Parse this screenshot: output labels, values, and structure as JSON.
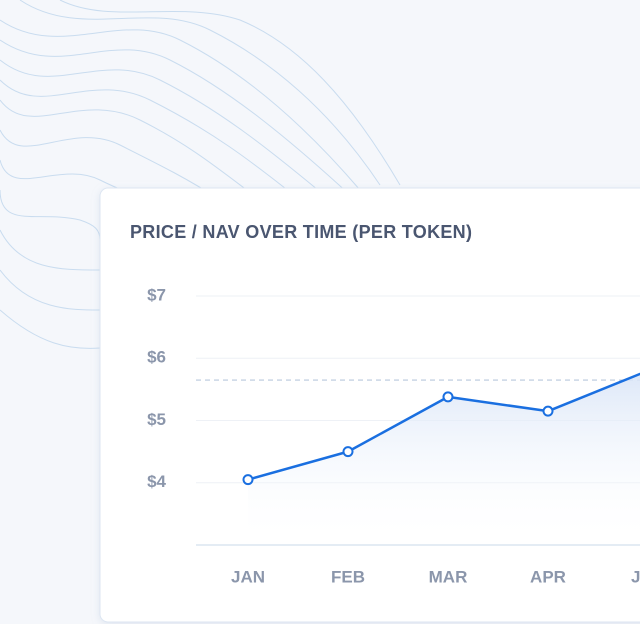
{
  "chart_data": {
    "type": "line",
    "title": "PRICE / NAV OVER TIME (PER TOKEN)",
    "categories": [
      "JAN",
      "FEB",
      "MAR",
      "APR",
      "JUN"
    ],
    "series": [
      {
        "color": "#1a6fe0",
        "values": [
          4.05,
          4.5,
          5.38,
          5.15,
          5.8
        ]
      }
    ],
    "reference_line": 5.65,
    "ylim": [
      3,
      7
    ],
    "yticks": [
      {
        "value": 4,
        "label": "$4"
      },
      {
        "value": 5,
        "label": "$5"
      },
      {
        "value": 6,
        "label": "$6"
      },
      {
        "value": 7,
        "label": "$7"
      }
    ],
    "grid": true
  }
}
